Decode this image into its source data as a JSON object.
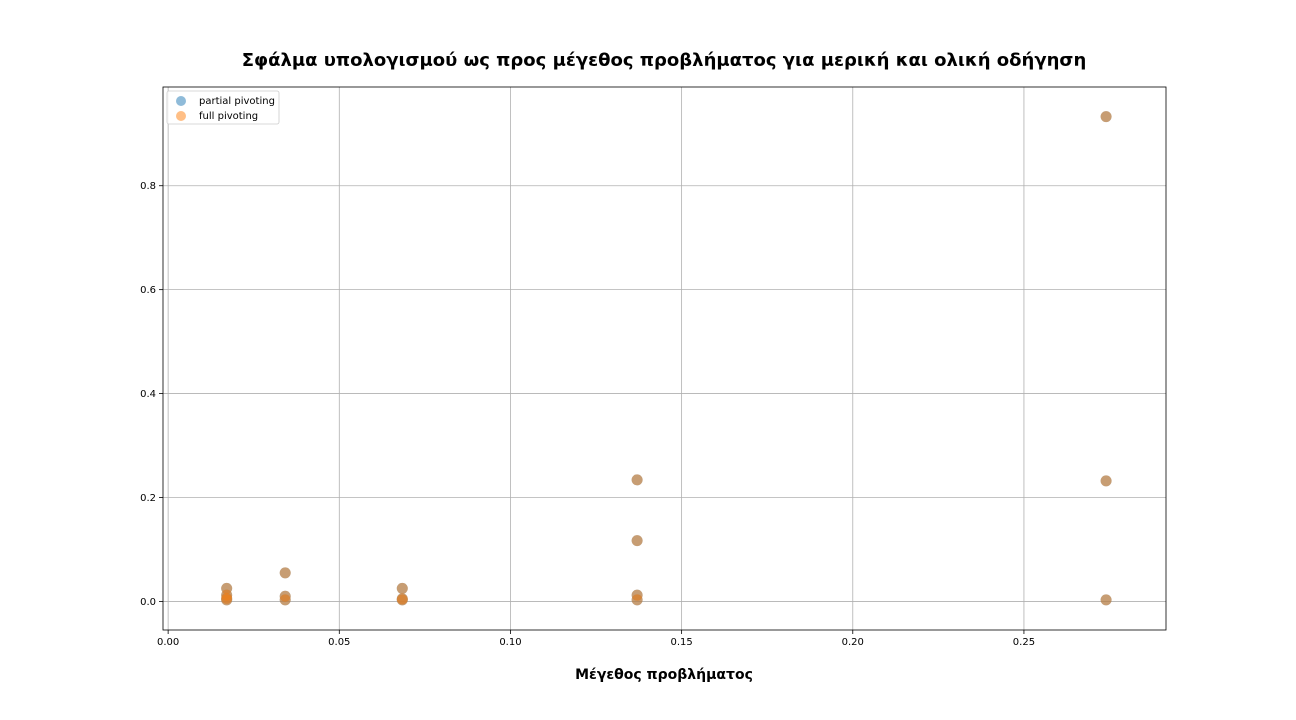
{
  "chart_data": {
    "type": "scatter",
    "title": "Σφάλμα υπολογισμού ως προς μέγεθος προβλήματος για μερική και ολική οδήγηση",
    "xlabel": "Μέγεθος προβλήματος",
    "ylabel": "",
    "xlim": [
      -0.0015,
      0.2915
    ],
    "ylim": [
      -0.055,
      0.99
    ],
    "grid": true,
    "legend_position": "top-left",
    "x_ticks": [
      0.0,
      0.05,
      0.1,
      0.15,
      0.2,
      0.25
    ],
    "x_tick_labels": [
      "0.00",
      "0.05",
      "0.10",
      "0.15",
      "0.20",
      "0.25"
    ],
    "y_ticks": [
      0.0,
      0.2,
      0.4,
      0.6,
      0.8
    ],
    "y_tick_labels": [
      "0.0",
      "0.2",
      "0.4",
      "0.6",
      "0.8"
    ],
    "series": [
      {
        "name": "partial pivoting",
        "color": "#1f77b4",
        "alpha": 0.5,
        "x": [
          0.0171,
          0.0171,
          0.0171,
          0.0171,
          0.0342,
          0.0342,
          0.0342,
          0.0684,
          0.0684,
          0.0684,
          0.137,
          0.137,
          0.137,
          0.137,
          0.274,
          0.274,
          0.274
        ],
        "y": [
          0.025,
          0.012,
          0.006,
          0.003,
          0.055,
          0.01,
          0.003,
          0.025,
          0.005,
          0.003,
          0.234,
          0.117,
          0.012,
          0.003,
          0.933,
          0.232,
          0.003
        ]
      },
      {
        "name": "full pivoting",
        "color": "#ff7f0e",
        "alpha": 0.5,
        "x": [
          0.0171,
          0.0171,
          0.0171,
          0.0171,
          0.0342,
          0.0342,
          0.0342,
          0.0684,
          0.0684,
          0.0684,
          0.137,
          0.137,
          0.137,
          0.137,
          0.274,
          0.274,
          0.274
        ],
        "y": [
          0.025,
          0.012,
          0.006,
          0.003,
          0.055,
          0.01,
          0.003,
          0.025,
          0.005,
          0.003,
          0.234,
          0.117,
          0.012,
          0.003,
          0.933,
          0.232,
          0.003
        ]
      }
    ]
  }
}
